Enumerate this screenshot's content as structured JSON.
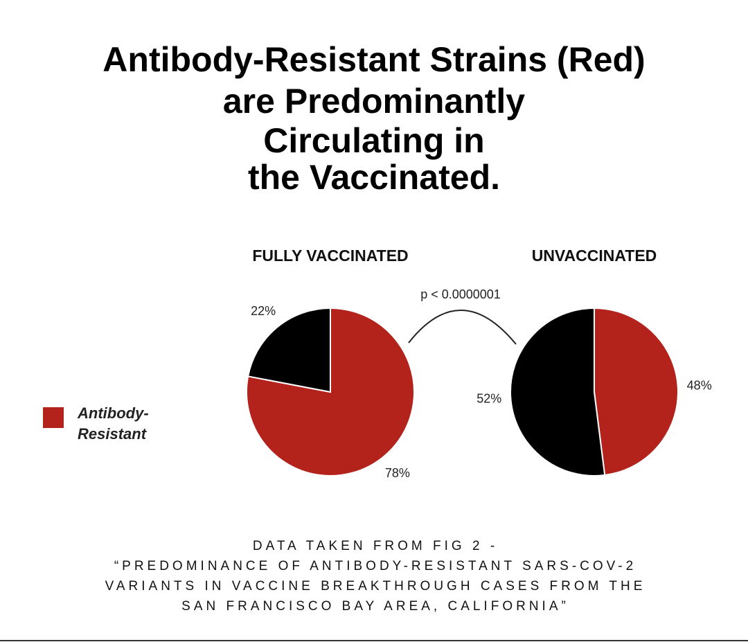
{
  "header": {
    "title_lines": [
      "Antibody-Resistant Strains (Red)",
      "are Predominantly",
      "Circulating in",
      "the Vaccinated."
    ]
  },
  "annotation": "p < 0.0000001",
  "footer_lines": [
    "DATA TAKEN FROM FIG 2 -",
    "“PREDOMINANCE OF ANTIBODY-RESISTANT SARS-COV-2",
    "VARIANTS IN VACCINE BREAKTHROUGH CASES FROM THE",
    "SAN FRANCISCO BAY AREA, CALIFORNIA”"
  ],
  "chart_data": [
    {
      "type": "pie",
      "title": "FULLY VACCINATED",
      "categories": [
        "Antibody-Resistant",
        null
      ],
      "values": [
        78,
        22
      ],
      "value_labels": [
        "78%",
        "22%"
      ],
      "colors": [
        "#b3221b",
        "#000000"
      ]
    },
    {
      "type": "pie",
      "title": "UNVACCINATED",
      "categories": [
        "Antibody-Resistant",
        null
      ],
      "values": [
        48,
        52
      ],
      "value_labels": [
        "48%",
        "52%"
      ],
      "colors": [
        "#b3221b",
        "#000000"
      ]
    }
  ]
}
